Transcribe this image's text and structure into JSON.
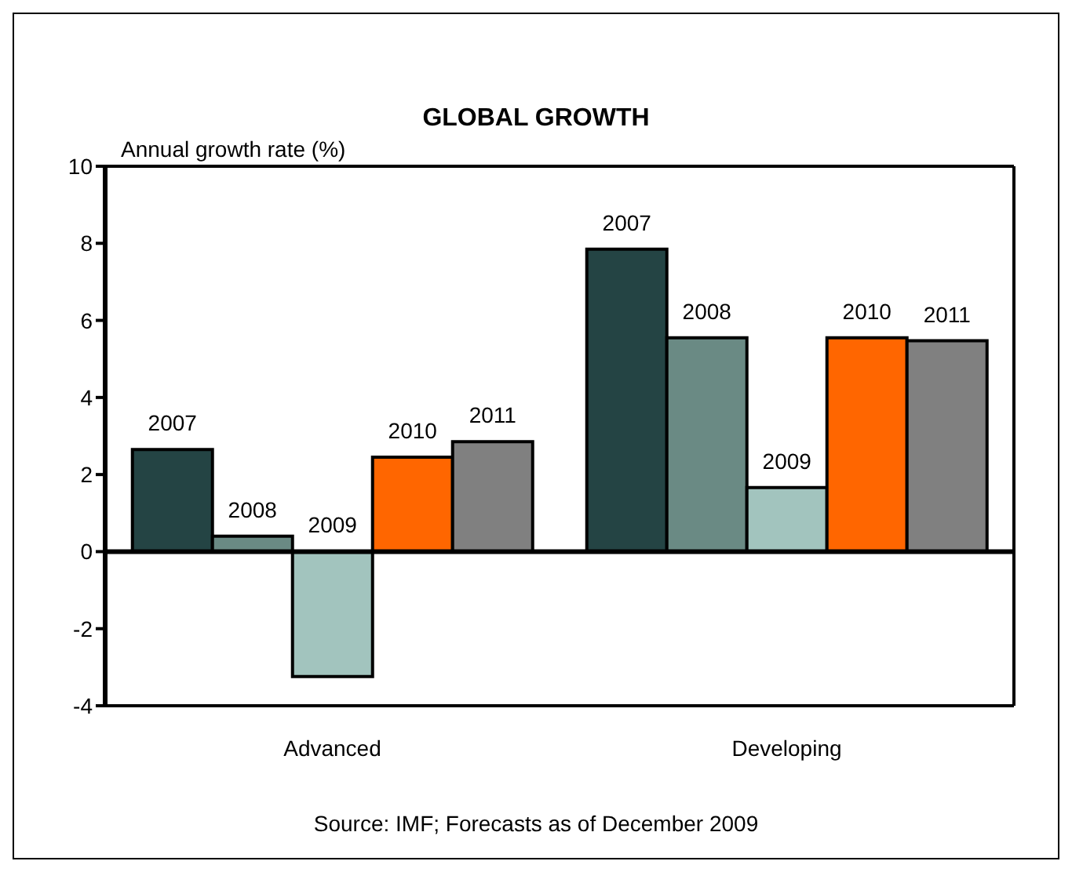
{
  "chart_data": {
    "type": "bar",
    "title": "GLOBAL GROWTH",
    "ylabel": "Annual growth rate (%)",
    "categories": [
      "Advanced",
      "Developing"
    ],
    "series": [
      {
        "name": "2007",
        "color": "#244444",
        "values": [
          2.65,
          7.85
        ]
      },
      {
        "name": "2008",
        "color": "#6a8a84",
        "values": [
          0.4,
          5.55
        ]
      },
      {
        "name": "2009",
        "color": "#a2c4be",
        "values": [
          -3.24,
          1.66
        ]
      },
      {
        "name": "2010",
        "color": "#ff6600",
        "values": [
          2.45,
          5.55
        ]
      },
      {
        "name": "2011",
        "color": "#808080",
        "values": [
          2.85,
          5.47
        ]
      }
    ],
    "ylim": [
      -4,
      10
    ],
    "yticks": [
      -4,
      -2,
      0,
      2,
      4,
      6,
      8,
      10
    ],
    "legend": false,
    "annotations": [
      "Source: IMF; Forecasts as of December 2009"
    ]
  }
}
